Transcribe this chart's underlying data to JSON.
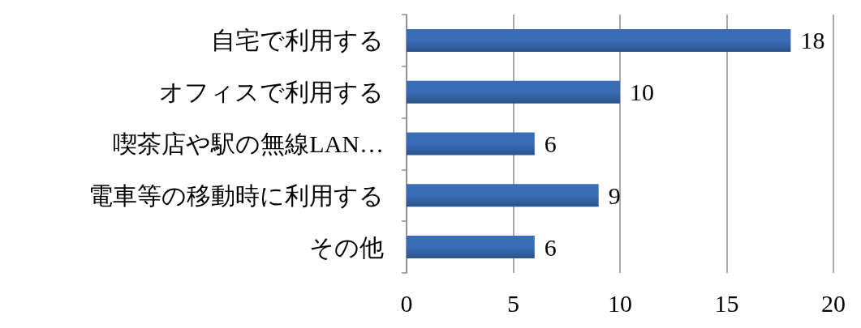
{
  "chart_data": {
    "type": "bar",
    "orientation": "horizontal",
    "categories": [
      "自宅で利用する",
      "オフィスで利用する",
      "喫茶店や駅の無線LAN…",
      "電車等の移動時に利用する",
      "その他"
    ],
    "values": [
      18,
      10,
      6,
      9,
      6
    ],
    "color": "#3a6db5",
    "xlim": [
      0,
      20
    ],
    "xticks": [
      0,
      5,
      10,
      15,
      20
    ],
    "grid": "x",
    "data_labels": true
  }
}
